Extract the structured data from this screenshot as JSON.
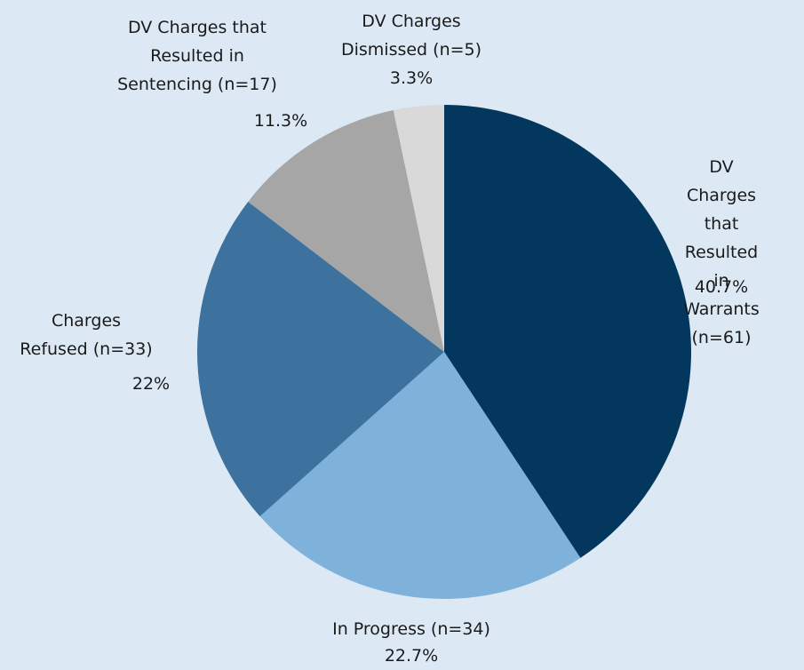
{
  "chart_data": {
    "type": "pie",
    "categories": [
      "DV Charges that\nResulted\nin Warrants\n(n=61)",
      "In Progress (n=34)",
      "Charges\nRefused (n=33)",
      "DV Charges that\nResulted in\nSentencing (n=17)",
      "DV Charges\nDismissed (n=5)"
    ],
    "values": [
      40.7,
      22.7,
      22,
      11.3,
      3.3
    ],
    "value_labels": [
      "40.7%",
      "22.7%",
      "22%",
      "11.3%",
      "3.3%"
    ],
    "colors": [
      "#03375e",
      "#7fb2da",
      "#3e729e",
      "#a6a6a6",
      "#d9d9d9"
    ]
  }
}
